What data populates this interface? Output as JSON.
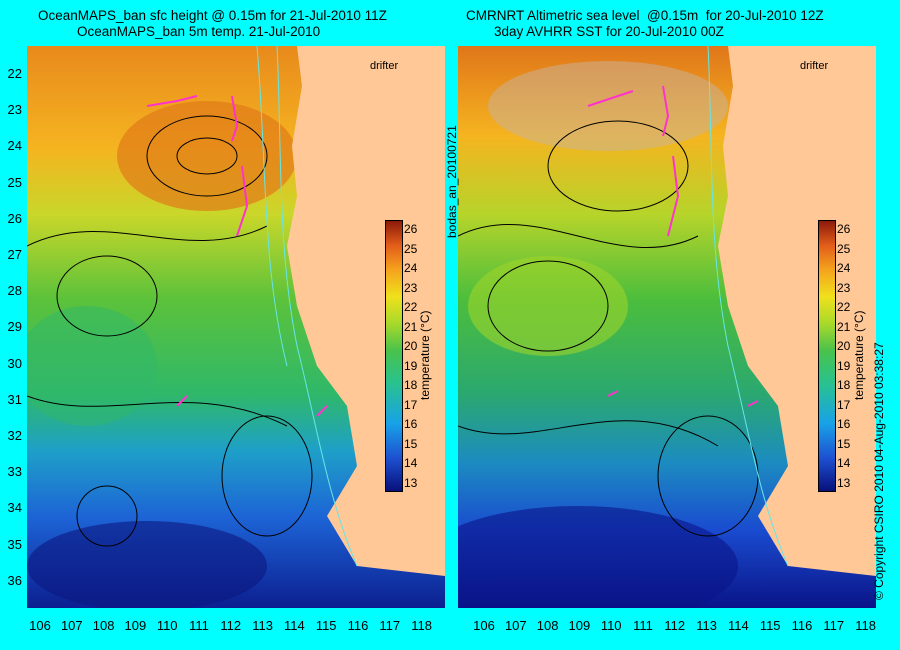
{
  "left": {
    "title_line1": "OceanMAPS_ban sfc height @ 0.15m for 21-Jul-2010 11Z",
    "title_line2": "OceanMAPS_ban 5m temp. 21-Jul-2010"
  },
  "right": {
    "title_line1": "CMRNRT Altimetric sea level  @0.15m  for 20-Jul-2010 12Z",
    "title_line2": "3day AVHRR SST for 20-Jul-2010 00Z"
  },
  "legend": {
    "drifter_label": "drifter",
    "drifter_color": "#ff33cc"
  },
  "colorbar": {
    "label": "temperature (°C)",
    "ticks": [
      "26",
      "25",
      "24",
      "23",
      "22",
      "21",
      "20",
      "19",
      "18",
      "17",
      "16",
      "15",
      "14",
      "13"
    ]
  },
  "y_ticks": [
    "22",
    "23",
    "24",
    "25",
    "26",
    "27",
    "28",
    "29",
    "30",
    "31",
    "32",
    "33",
    "34",
    "35",
    "36"
  ],
  "x_ticks": [
    "106",
    "107",
    "108",
    "109",
    "110",
    "111",
    "112",
    "113",
    "114",
    "115",
    "116",
    "117",
    "118"
  ],
  "side_label": "bodas_an_20100721",
  "copyright": "© Copyright CSIRO 2010    04-Aug-2010 03:38:27",
  "colors": {
    "land": "#ffc896",
    "frame": "#00ffff",
    "contour": "#000000",
    "isobath": "#66e6e6"
  }
}
